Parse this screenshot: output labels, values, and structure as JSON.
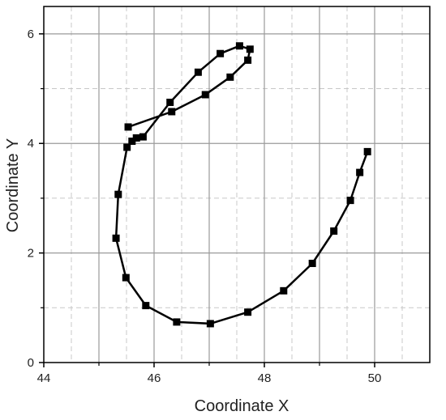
{
  "chart_data": {
    "type": "scatter",
    "title": "",
    "xlabel": "Coordinate X",
    "ylabel": "Coordinate Y",
    "xlim": [
      44,
      51
    ],
    "ylim": [
      0,
      6.5
    ],
    "x_ticks": [
      "44",
      "46",
      "48",
      "50"
    ],
    "y_ticks": [
      "0",
      "2",
      "4",
      "6"
    ],
    "major_grid": true,
    "minor_grid": true,
    "connected": true,
    "marker": "square",
    "line_color": "#000000",
    "series": [
      {
        "points": [
          [
            49.87,
            3.85
          ],
          [
            49.73,
            3.47
          ],
          [
            49.56,
            2.96
          ],
          [
            49.26,
            2.4
          ],
          [
            48.87,
            1.81
          ],
          [
            48.35,
            1.31
          ],
          [
            47.7,
            0.92
          ],
          [
            47.02,
            0.71
          ],
          [
            46.41,
            0.74
          ],
          [
            45.85,
            1.04
          ],
          [
            45.49,
            1.55
          ],
          [
            45.31,
            2.27
          ],
          [
            45.35,
            3.07
          ],
          [
            45.51,
            3.93
          ],
          [
            45.6,
            4.04
          ],
          [
            45.68,
            4.1
          ],
          [
            45.8,
            4.12
          ],
          [
            46.29,
            4.75
          ],
          [
            46.8,
            5.3
          ],
          [
            47.2,
            5.64
          ],
          [
            47.55,
            5.78
          ],
          [
            47.74,
            5.72
          ],
          [
            47.7,
            5.52
          ],
          [
            47.38,
            5.21
          ],
          [
            46.93,
            4.89
          ],
          [
            46.32,
            4.58
          ],
          [
            45.53,
            4.3
          ]
        ]
      }
    ]
  }
}
